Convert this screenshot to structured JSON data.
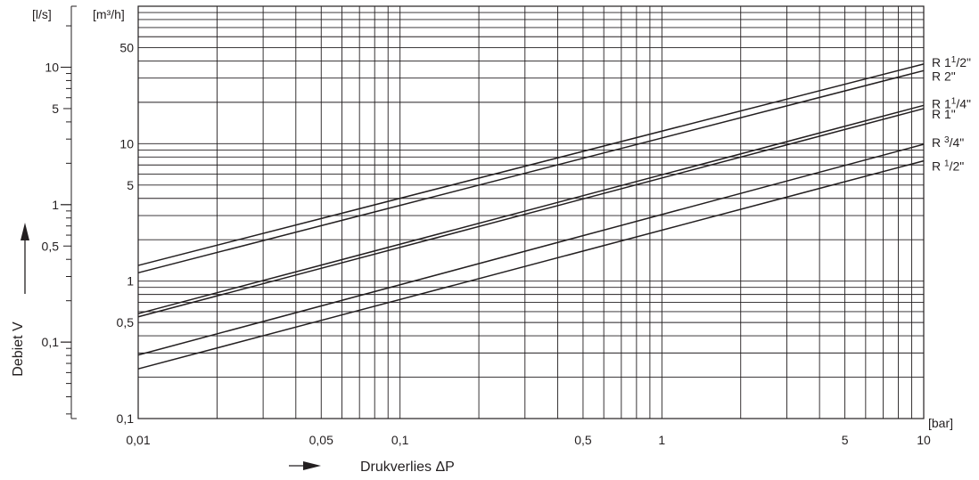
{
  "chart_data": {
    "type": "line",
    "x_scale": "log",
    "y_scale": "log",
    "grid": true,
    "xlim": [
      0.01,
      10
    ],
    "ylim": [
      0.1,
      100
    ],
    "x_unit": "[bar]",
    "y_unit": "[m³/h]",
    "y2_unit": "[l/s]",
    "xlabel": "Drukverlies ΔP",
    "ylabel": "Debiet V",
    "x_ticks": [
      {
        "value": 0.01,
        "label": "0,01"
      },
      {
        "value": 0.05,
        "label": "0,05"
      },
      {
        "value": 0.1,
        "label": "0,1"
      },
      {
        "value": 0.5,
        "label": "0,5"
      },
      {
        "value": 1,
        "label": "1"
      },
      {
        "value": 5,
        "label": "5"
      },
      {
        "value": 10,
        "label": "10"
      }
    ],
    "y_ticks": [
      {
        "value": 0.1,
        "label": "0,1"
      },
      {
        "value": 0.5,
        "label": "0,5"
      },
      {
        "value": 1,
        "label": "1"
      },
      {
        "value": 5,
        "label": "5"
      },
      {
        "value": 10,
        "label": "10"
      },
      {
        "value": 50,
        "label": "50"
      }
    ],
    "y2_ticks": [
      {
        "value": 0.1,
        "label": "0,1"
      },
      {
        "value": 0.5,
        "label": "0,5"
      },
      {
        "value": 1,
        "label": "1"
      },
      {
        "value": 5,
        "label": "5"
      },
      {
        "value": 10,
        "label": "10"
      }
    ],
    "series": [
      {
        "name": "R 1½\"",
        "label_main": "R 1",
        "label_sup": "1",
        "label_sub": "/2\"",
        "x": [
          0.01,
          10
        ],
        "y": [
          1.3,
          38
        ]
      },
      {
        "name": "R 2\"",
        "label_main": "R 2\"",
        "x": [
          0.01,
          10
        ],
        "y": [
          1.15,
          34
        ]
      },
      {
        "name": "R 1¼\"",
        "label_main": "R 1",
        "label_sup": "1",
        "label_sub": "/4\"",
        "x": [
          0.01,
          10
        ],
        "y": [
          0.58,
          19
        ]
      },
      {
        "name": "R 1\"",
        "label_main": "R 1\"",
        "x": [
          0.01,
          10
        ],
        "y": [
          0.55,
          18
        ]
      },
      {
        "name": "R ¾\"",
        "label_main": "R ",
        "label_sup": "3",
        "label_sub": "/4\"",
        "x": [
          0.01,
          10
        ],
        "y": [
          0.29,
          9.9
        ]
      },
      {
        "name": "R ½\"",
        "label_main": "R ",
        "label_sup": "1",
        "label_sub": "/2\"",
        "x": [
          0.01,
          10
        ],
        "y": [
          0.23,
          7.5
        ]
      }
    ]
  }
}
